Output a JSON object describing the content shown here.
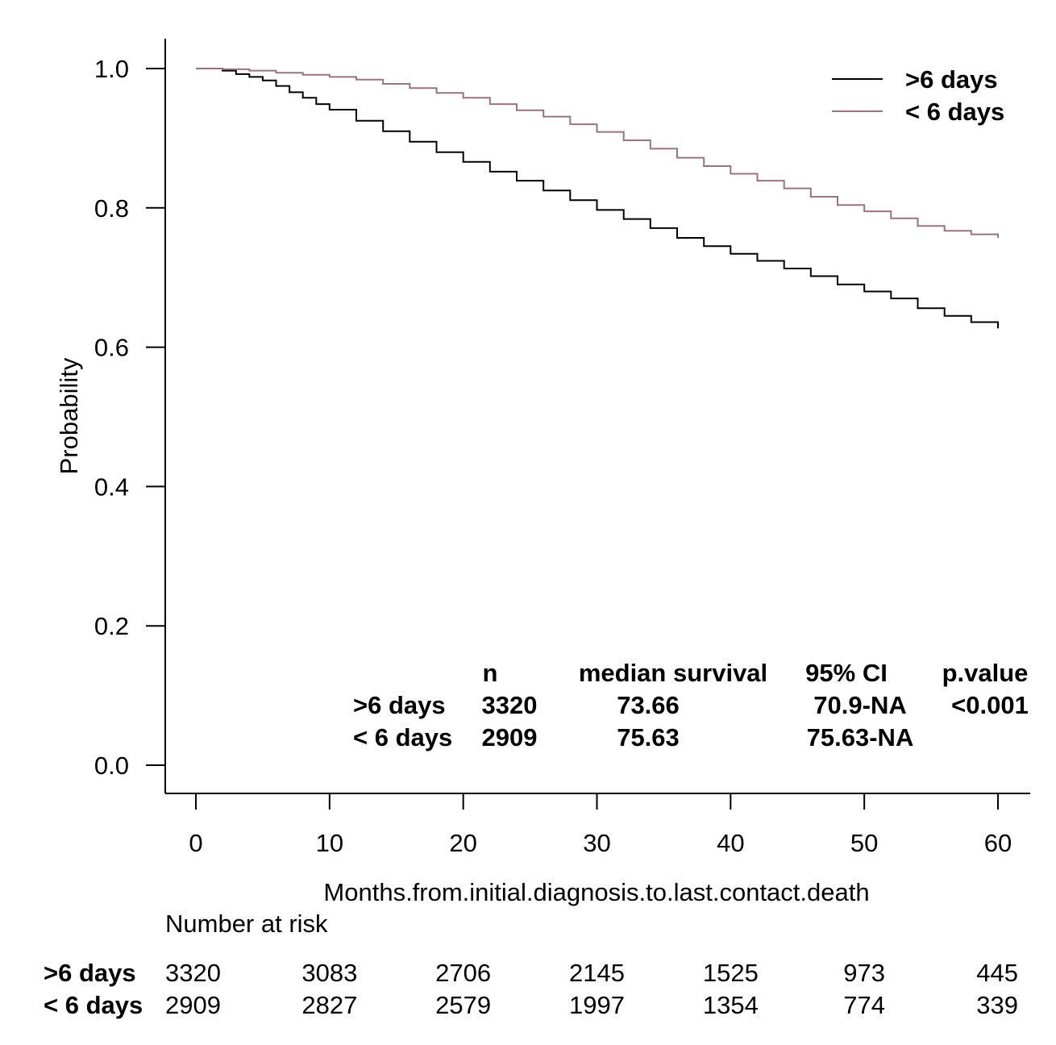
{
  "chart_data": {
    "type": "line",
    "xlabel": "Months.from.initial.diagnosis.to.last.contact.death",
    "ylabel": "Probability",
    "xlim": [
      0,
      60
    ],
    "ylim": [
      0,
      1
    ],
    "x_ticks": [
      "0",
      "10",
      "20",
      "30",
      "40",
      "50",
      "60"
    ],
    "y_ticks": [
      "0.0",
      "0.2",
      "0.4",
      "0.6",
      "0.8",
      "1.0"
    ],
    "legend_position": "top-right",
    "series": [
      {
        "name": ">6 days",
        "color": "#000000",
        "x": [
          0,
          1,
          2,
          3,
          4,
          5,
          6,
          7,
          8,
          9,
          10,
          12,
          14,
          16,
          18,
          20,
          22,
          24,
          26,
          28,
          30,
          32,
          34,
          36,
          38,
          40,
          42,
          44,
          46,
          48,
          50,
          52,
          54,
          56,
          58,
          60
        ],
        "y": [
          1.0,
          1.0,
          0.997,
          0.992,
          0.988,
          0.983,
          0.975,
          0.966,
          0.958,
          0.949,
          0.941,
          0.925,
          0.91,
          0.895,
          0.88,
          0.866,
          0.852,
          0.839,
          0.825,
          0.811,
          0.797,
          0.784,
          0.771,
          0.757,
          0.745,
          0.734,
          0.724,
          0.713,
          0.702,
          0.69,
          0.68,
          0.67,
          0.656,
          0.645,
          0.636,
          0.627
        ]
      },
      {
        "name": "< 6 days",
        "color": "#9a7380",
        "x": [
          0,
          2,
          4,
          6,
          8,
          10,
          12,
          14,
          16,
          18,
          20,
          22,
          24,
          26,
          28,
          30,
          32,
          34,
          36,
          38,
          40,
          42,
          44,
          46,
          48,
          50,
          52,
          54,
          56,
          58,
          60
        ],
        "y": [
          1.0,
          0.999,
          0.997,
          0.994,
          0.991,
          0.988,
          0.984,
          0.978,
          0.972,
          0.965,
          0.958,
          0.949,
          0.94,
          0.931,
          0.92,
          0.909,
          0.897,
          0.885,
          0.872,
          0.86,
          0.849,
          0.839,
          0.828,
          0.816,
          0.804,
          0.795,
          0.785,
          0.774,
          0.767,
          0.762,
          0.757
        ]
      }
    ],
    "stats_table": {
      "headers": [
        "n",
        "median survival",
        "95% CI",
        "p.value"
      ],
      "rows": [
        {
          "label": ">6 days",
          "n": "3320",
          "median": "73.66",
          "ci": "70.9-NA",
          "p": "<0.001"
        },
        {
          "label": "< 6 days",
          "n": "2909",
          "median": "75.63",
          "ci": "75.63-NA",
          "p": ""
        }
      ]
    },
    "risk_table": {
      "title": "Number at risk",
      "times": [
        0,
        10,
        20,
        30,
        40,
        50,
        60
      ],
      "rows": [
        {
          "label": ">6 days",
          "values": [
            "3320",
            "3083",
            "2706",
            "2145",
            "1525",
            "973",
            "445"
          ]
        },
        {
          "label": "< 6 days",
          "values": [
            "2909",
            "2827",
            "2579",
            "1997",
            "1354",
            "774",
            "339"
          ]
        }
      ]
    }
  }
}
